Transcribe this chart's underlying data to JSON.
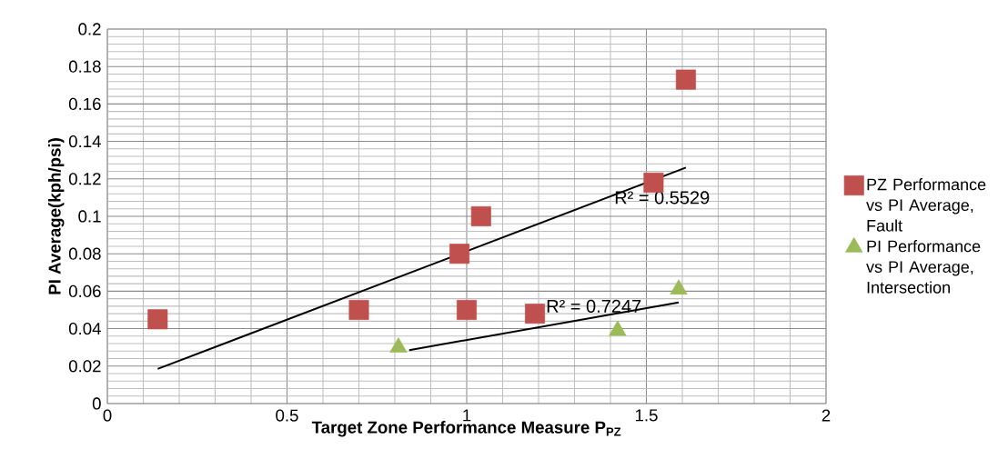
{
  "chart_data": {
    "type": "scatter",
    "xlabel": "Target Zone Performance Measure P$_{PZ}$",
    "ylabel": "PI Average(kph/psi)",
    "series": [
      {
        "name": "PZ Performance vs PI Average, Fault",
        "color": "#c0504d",
        "marker": "square",
        "x": [
          0.14,
          0.7,
          0.98,
          1.04,
          1.0,
          1.19,
          1.52,
          1.61
        ],
        "values": [
          0.045,
          0.05,
          0.08,
          0.1,
          0.05,
          0.048,
          0.118,
          0.173
        ]
      },
      {
        "name": "PI Performance vs PI Average, Intersection",
        "color": "#9bbb59",
        "marker": "triangle",
        "x": [
          0.81,
          1.42,
          1.59
        ],
        "values": [
          0.03,
          0.039,
          0.061
        ]
      },
      {
        "type": "line",
        "color": "#000000",
        "marker": "none",
        "x": [
          0.14,
          1.61
        ],
        "values": [
          0.0185,
          0.126
        ]
      },
      {
        "type": "line",
        "color": "#000000",
        "marker": "none",
        "x": [
          0.84,
          1.59
        ],
        "values": [
          0.0285,
          0.054
        ]
      }
    ],
    "annotations": [
      {
        "text": "R² = 0.5529",
        "x": 1.41,
        "y": 0.11
      },
      {
        "text": "R² = 0.7247",
        "x": 1.22,
        "y": 0.052
      }
    ],
    "xlim": [
      0,
      2
    ],
    "ylim": [
      0,
      0.2
    ],
    "xticks": [
      0,
      0.5,
      1,
      1.5,
      2
    ],
    "yticks": [
      0,
      0.02,
      0.04,
      0.06,
      0.08,
      0.1,
      0.12,
      0.14,
      0.16,
      0.18,
      0.2
    ],
    "grid": true,
    "legend": "right"
  }
}
